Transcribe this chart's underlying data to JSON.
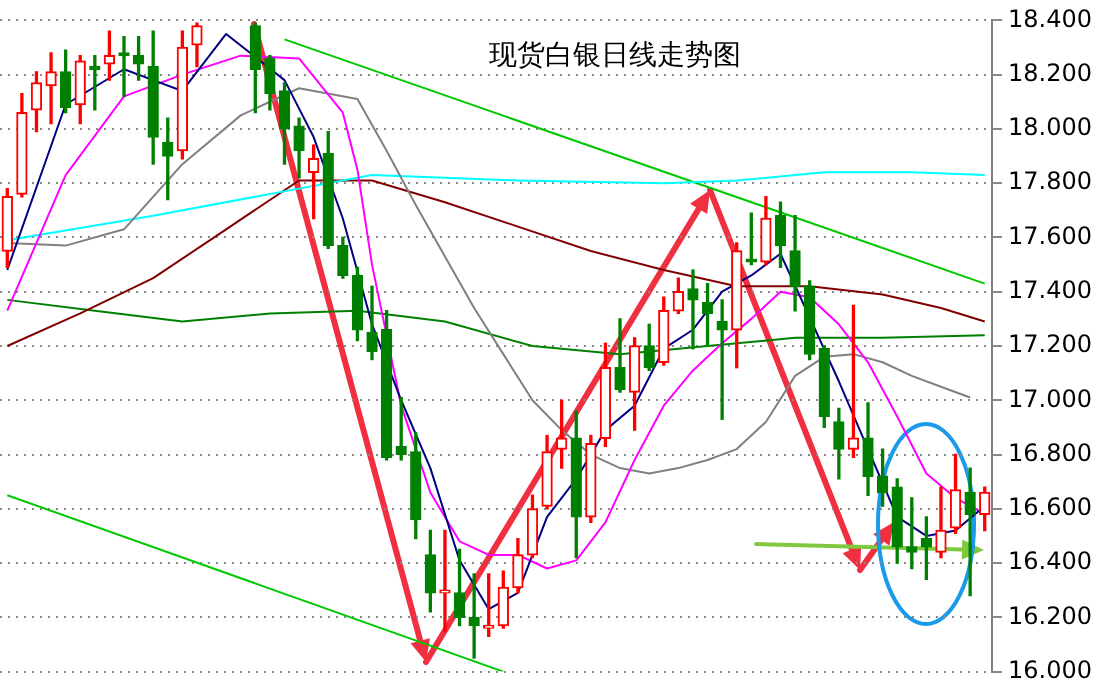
{
  "chart_data": {
    "type": "candlestick",
    "title": "现货白银日线走势图",
    "categories": [
      null,
      null,
      null,
      null,
      null,
      null,
      null,
      null,
      null,
      null,
      null,
      null,
      null,
      null,
      null,
      null,
      null,
      null,
      null,
      null,
      null,
      null,
      null,
      null,
      null,
      null,
      null,
      null,
      null,
      null,
      null,
      null,
      null,
      null,
      null,
      null,
      null,
      null,
      null,
      null,
      null,
      null,
      null,
      null,
      null,
      null,
      null,
      null,
      null,
      null,
      null,
      null,
      null,
      null,
      null,
      null,
      null,
      null,
      null,
      null,
      null,
      null,
      null,
      null,
      null,
      null,
      null,
      null
    ],
    "ohlc": [
      [
        17.55,
        17.78,
        17.49,
        17.75
      ],
      [
        17.76,
        18.13,
        17.75,
        18.06
      ],
      [
        18.07,
        18.21,
        17.99,
        18.17
      ],
      [
        18.16,
        18.28,
        18.02,
        18.21
      ],
      [
        18.21,
        18.29,
        18.06,
        18.08
      ],
      [
        18.09,
        18.27,
        18.02,
        18.25
      ],
      [
        18.23,
        18.27,
        18.07,
        18.22
      ],
      [
        18.24,
        18.36,
        18.18,
        18.27
      ],
      [
        18.28,
        18.34,
        18.12,
        18.27
      ],
      [
        18.27,
        18.34,
        18.18,
        18.24
      ],
      [
        18.23,
        18.36,
        17.87,
        17.97
      ],
      [
        17.95,
        18.04,
        17.74,
        17.9
      ],
      [
        17.92,
        18.36,
        17.89,
        18.3
      ],
      [
        18.31,
        18.39,
        18.23,
        18.38
      ],
      null,
      null,
      null,
      [
        18.38,
        18.39,
        18.06,
        18.22
      ],
      [
        18.26,
        18.27,
        18.07,
        18.13
      ],
      [
        18.14,
        18.17,
        17.87,
        18.0
      ],
      [
        18.01,
        18.04,
        17.82,
        17.92
      ],
      [
        17.84,
        17.94,
        17.67,
        17.89
      ],
      [
        17.91,
        17.99,
        17.56,
        17.57
      ],
      [
        17.57,
        17.6,
        17.45,
        17.46
      ],
      [
        17.46,
        17.49,
        17.22,
        17.26
      ],
      [
        17.25,
        17.42,
        17.15,
        17.18
      ],
      [
        17.26,
        17.33,
        16.78,
        16.79
      ],
      [
        16.83,
        17.01,
        16.78,
        16.8
      ],
      [
        16.81,
        16.88,
        16.49,
        16.56
      ],
      [
        16.43,
        16.52,
        16.22,
        16.29
      ],
      [
        16.29,
        16.52,
        16.15,
        16.3
      ],
      [
        16.29,
        16.45,
        16.17,
        16.2
      ],
      [
        16.2,
        16.36,
        16.05,
        16.17
      ],
      [
        16.16,
        16.36,
        16.13,
        16.17
      ],
      [
        16.17,
        16.37,
        16.16,
        16.31
      ],
      [
        16.31,
        16.49,
        16.29,
        16.43
      ],
      [
        16.43,
        16.65,
        16.42,
        16.6
      ],
      [
        16.61,
        16.87,
        16.6,
        16.81
      ],
      [
        16.82,
        17.0,
        16.75,
        16.86
      ],
      [
        16.86,
        16.96,
        16.42,
        16.57
      ],
      [
        16.57,
        16.87,
        16.55,
        16.84
      ],
      [
        16.86,
        17.21,
        16.83,
        17.12
      ],
      [
        17.12,
        17.3,
        17.03,
        17.04
      ],
      [
        17.03,
        17.23,
        16.89,
        17.2
      ],
      [
        17.2,
        17.28,
        17.11,
        17.12
      ],
      [
        17.14,
        17.38,
        17.13,
        17.33
      ],
      [
        17.33,
        17.45,
        17.32,
        17.4
      ],
      [
        17.41,
        17.48,
        17.19,
        17.37
      ],
      [
        17.36,
        17.43,
        17.2,
        17.32
      ],
      [
        17.29,
        17.37,
        16.93,
        17.26
      ],
      [
        17.26,
        17.58,
        17.12,
        17.55
      ],
      [
        17.52,
        17.69,
        17.5,
        17.51
      ],
      [
        17.51,
        17.75,
        17.5,
        17.67
      ],
      [
        17.68,
        17.73,
        17.49,
        17.57
      ],
      [
        17.55,
        17.68,
        17.33,
        17.42
      ],
      [
        17.42,
        17.44,
        17.15,
        17.17
      ],
      [
        17.19,
        17.2,
        16.9,
        16.94
      ],
      [
        16.92,
        16.97,
        16.71,
        16.82
      ],
      [
        16.82,
        17.35,
        16.79,
        16.86
      ],
      [
        16.86,
        16.99,
        16.65,
        16.72
      ],
      [
        16.72,
        16.82,
        16.61,
        16.66
      ],
      [
        16.68,
        16.71,
        16.4,
        16.46
      ],
      [
        16.46,
        16.64,
        16.38,
        16.44
      ],
      [
        16.49,
        16.57,
        16.34,
        16.46
      ],
      [
        16.44,
        16.68,
        16.42,
        16.52
      ],
      [
        16.53,
        16.8,
        16.51,
        16.67
      ],
      [
        16.66,
        16.75,
        16.28,
        16.58
      ],
      [
        16.58,
        16.68,
        16.52,
        16.66
      ]
    ],
    "colors": [
      "#ff0000",
      "#ff0000",
      "#ff0000",
      "#ff0000",
      "#008000",
      "#ff0000",
      "#008000",
      "#ff0000",
      "#008000",
      "#008000",
      "#008000",
      "#008000",
      "#ff0000",
      "#ff0000",
      null,
      null,
      null,
      "#008000",
      "#008000",
      "#008000",
      "#008000",
      "#ff0000",
      "#008000",
      "#008000",
      "#008000",
      "#008000",
      "#008000",
      "#008000",
      "#008000",
      "#008000",
      "#ff0000",
      "#008000",
      "#008000",
      "#ff0000",
      "#ff0000",
      "#ff0000",
      "#ff0000",
      "#ff0000",
      "#ff0000",
      "#008000",
      "#ff0000",
      "#ff0000",
      "#008000",
      "#ff0000",
      "#008000",
      "#ff0000",
      "#ff0000",
      "#008000",
      "#008000",
      "#008000",
      "#ff0000",
      "#008000",
      "#ff0000",
      "#008000",
      "#008000",
      "#008000",
      "#008000",
      "#008000",
      "#ff0000",
      "#008000",
      "#008000",
      "#008000",
      "#008000",
      "#008000",
      "#ff0000",
      "#ff0000",
      "#008000",
      "#ff0000"
    ],
    "series": [
      {
        "type": "line",
        "color": "#000080",
        "values": [
          17.48,
          null,
          null,
          null,
          18.09,
          null,
          null,
          null,
          18.22,
          null,
          18.18,
          null,
          18.14,
          null,
          null,
          18.35,
          null,
          null,
          null,
          18.18,
          null,
          17.97,
          null,
          17.67,
          null,
          17.28,
          null,
          17.0,
          null,
          16.75,
          null,
          16.41,
          null,
          16.23,
          null,
          16.29,
          null,
          16.57,
          null,
          16.71,
          null,
          16.89,
          null,
          16.98,
          null,
          17.19,
          null,
          17.26,
          null,
          17.4,
          null,
          17.46,
          null,
          17.54,
          null,
          null,
          null,
          17.07,
          null,
          null,
          null,
          16.57,
          null,
          16.5,
          null,
          16.52,
          null,
          16.61
        ]
      },
      {
        "type": "line",
        "color": "#ff00ff",
        "values": [
          17.33,
          null,
          null,
          null,
          17.83,
          null,
          null,
          null,
          18.12,
          null,
          null,
          null,
          18.2,
          null,
          null,
          null,
          18.27,
          null,
          null,
          null,
          18.26,
          null,
          null,
          18.06,
          17.85,
          17.5,
          null,
          16.98,
          null,
          16.66,
          null,
          16.48,
          null,
          16.43,
          null,
          16.43,
          null,
          16.38,
          null,
          16.41,
          null,
          16.55,
          null,
          16.78,
          null,
          16.98,
          null,
          17.11,
          null,
          17.21,
          null,
          17.3,
          null,
          17.4,
          null,
          17.38,
          null,
          17.28,
          null,
          17.14,
          null,
          16.94,
          null,
          16.73,
          null,
          16.64,
          null,
          16.58
        ]
      },
      {
        "type": "line",
        "color": "#808080",
        "values": [
          17.58,
          null,
          null,
          null,
          17.57,
          null,
          null,
          null,
          17.63,
          null,
          null,
          null,
          17.87,
          null,
          null,
          null,
          18.05,
          null,
          null,
          null,
          18.15,
          null,
          null,
          null,
          18.11,
          null,
          17.92,
          null,
          17.72,
          null,
          17.53,
          null,
          17.34,
          null,
          17.17,
          null,
          17.0,
          null,
          16.89,
          null,
          16.8,
          null,
          16.75,
          null,
          16.73,
          null,
          16.75,
          null,
          16.78,
          null,
          16.82,
          null,
          16.92,
          null,
          17.09,
          null,
          17.16,
          null,
          17.17,
          null,
          17.14,
          null,
          17.09,
          null,
          17.05,
          null,
          17.01,
          null
        ]
      },
      {
        "type": "line",
        "color": "#00ffff",
        "values": [
          17.59,
          null,
          null,
          null,
          null,
          null,
          null,
          null,
          null,
          null,
          17.68,
          null,
          null,
          null,
          null,
          null,
          null,
          null,
          null,
          null,
          17.78,
          null,
          null,
          null,
          null,
          17.83,
          null,
          null,
          null,
          null,
          null,
          null,
          null,
          null,
          null,
          17.81,
          null,
          null,
          null,
          null,
          null,
          null,
          null,
          null,
          null,
          17.8,
          null,
          null,
          null,
          null,
          17.81,
          null,
          null,
          null,
          null,
          null,
          17.84,
          null,
          null,
          null,
          null,
          null,
          17.84,
          null,
          null,
          null,
          null,
          17.83
        ]
      },
      {
        "type": "line",
        "color": "#800000",
        "values": [
          17.2,
          null,
          null,
          null,
          null,
          17.32,
          null,
          null,
          null,
          null,
          17.45,
          null,
          null,
          null,
          null,
          17.63,
          null,
          null,
          null,
          null,
          17.81,
          null,
          null,
          null,
          null,
          17.81,
          null,
          null,
          null,
          null,
          17.73,
          null,
          null,
          null,
          null,
          17.64,
          null,
          null,
          null,
          null,
          17.55,
          null,
          null,
          null,
          null,
          17.48,
          null,
          null,
          null,
          null,
          17.42,
          null,
          null,
          null,
          null,
          17.42,
          null,
          null,
          null,
          null,
          17.39,
          null,
          null,
          null,
          17.34,
          null,
          null,
          17.29
        ]
      },
      {
        "type": "line",
        "color": "#008000",
        "values": [
          17.37,
          null,
          null,
          null,
          null,
          null,
          17.33,
          null,
          null,
          null,
          null,
          null,
          17.29,
          null,
          null,
          null,
          null,
          null,
          17.32,
          null,
          null,
          null,
          null,
          null,
          17.33,
          null,
          null,
          null,
          null,
          null,
          17.29,
          null,
          null,
          null,
          null,
          null,
          17.2,
          null,
          null,
          null,
          null,
          null,
          17.17,
          null,
          null,
          null,
          null,
          null,
          17.2,
          null,
          null,
          null,
          null,
          null,
          17.23,
          null,
          null,
          null,
          null,
          null,
          17.23,
          null,
          null,
          null,
          null,
          null,
          null,
          17.24
        ]
      },
      {
        "type": "line",
        "color": "#00c800",
        "values": [
          null,
          null,
          null,
          null,
          null,
          null,
          null,
          null,
          null,
          null,
          null,
          null,
          null,
          null,
          null,
          null,
          null,
          null,
          null,
          18.33,
          null,
          null,
          null,
          null,
          null,
          null,
          null,
          null,
          null,
          null,
          null,
          null,
          null,
          null,
          null,
          null,
          null,
          null,
          null,
          null,
          null,
          null,
          null,
          null,
          null,
          null,
          null,
          null,
          null,
          null,
          null,
          null,
          null,
          null,
          null,
          null,
          null,
          null,
          null,
          null,
          null,
          null,
          null,
          null,
          null,
          null,
          null,
          17.43
        ]
      },
      {
        "type": "line",
        "color": "#00c800",
        "values": [
          16.65,
          null,
          null,
          null,
          null,
          null,
          null,
          null,
          null,
          null,
          null,
          null,
          null,
          null,
          null,
          null,
          null,
          null,
          null,
          null,
          null,
          null,
          null,
          null,
          null,
          null,
          null,
          null,
          null,
          null,
          null,
          null,
          null,
          null,
          16.0,
          null,
          null,
          null,
          null,
          null,
          null,
          null,
          null,
          null,
          null,
          null,
          null,
          null,
          null,
          null,
          null,
          null,
          null,
          null,
          null,
          null,
          null,
          null,
          null,
          null,
          null,
          null,
          null,
          null,
          null,
          null,
          null,
          null
        ]
      }
    ],
    "ylim": [
      16.0,
      18.4
    ],
    "yticks": [
      {
        "value": 16.0,
        "label": "16.000"
      },
      {
        "value": 16.2,
        "label": "16.200"
      },
      {
        "value": 16.4,
        "label": "16.400"
      },
      {
        "value": 16.6,
        "label": "16.600"
      },
      {
        "value": 16.8,
        "label": "16.800"
      },
      {
        "value": 17.0,
        "label": "17.000"
      },
      {
        "value": 17.2,
        "label": "17.200"
      },
      {
        "value": 17.4,
        "label": "17.400"
      },
      {
        "value": 17.6,
        "label": "17.600"
      },
      {
        "value": 17.8,
        "label": "17.800"
      },
      {
        "value": 18.0,
        "label": "18.000"
      },
      {
        "value": 18.2,
        "label": "18.200"
      },
      {
        "value": 18.4,
        "label": "18.400"
      }
    ],
    "grid": "y",
    "marker": "none",
    "tick_labels": "y"
  }
}
